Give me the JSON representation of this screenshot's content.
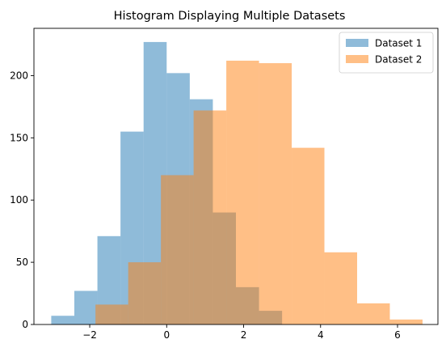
{
  "chart_data": {
    "type": "bar",
    "title": "Histogram Displaying Multiple Datasets",
    "xlabel": "",
    "ylabel": "",
    "xlim": [
      -3.45,
      7.05
    ],
    "ylim": [
      0,
      238
    ],
    "x_ticks": [
      -2,
      0,
      2,
      4,
      6
    ],
    "y_ticks": [
      0,
      50,
      100,
      150,
      200
    ],
    "grid": false,
    "legend_position": "top-right",
    "series": [
      {
        "name": "Dataset 1",
        "color": "#1f77b4",
        "opacity": 0.5,
        "bins": [
          {
            "x0": -3.0,
            "x1": -2.4,
            "count": 7
          },
          {
            "x0": -2.4,
            "x1": -1.8,
            "count": 27
          },
          {
            "x0": -1.8,
            "x1": -1.2,
            "count": 71
          },
          {
            "x0": -1.2,
            "x1": -0.6,
            "count": 155
          },
          {
            "x0": -0.6,
            "x1": 0.0,
            "count": 227
          },
          {
            "x0": 0.0,
            "x1": 0.6,
            "count": 202
          },
          {
            "x0": 0.6,
            "x1": 1.2,
            "count": 181
          },
          {
            "x0": 1.2,
            "x1": 1.8,
            "count": 90
          },
          {
            "x0": 1.8,
            "x1": 2.4,
            "count": 30
          },
          {
            "x0": 2.4,
            "x1": 3.0,
            "count": 11
          }
        ]
      },
      {
        "name": "Dataset 2",
        "color": "#ff7f0e",
        "opacity": 0.5,
        "bins": [
          {
            "x0": -1.85,
            "x1": -1.0,
            "count": 16
          },
          {
            "x0": -1.0,
            "x1": -0.15,
            "count": 50
          },
          {
            "x0": -0.15,
            "x1": 0.7,
            "count": 120
          },
          {
            "x0": 0.7,
            "x1": 1.55,
            "count": 172
          },
          {
            "x0": 1.55,
            "x1": 2.4,
            "count": 212
          },
          {
            "x0": 2.4,
            "x1": 3.25,
            "count": 210
          },
          {
            "x0": 3.25,
            "x1": 4.1,
            "count": 142
          },
          {
            "x0": 4.1,
            "x1": 4.95,
            "count": 58
          },
          {
            "x0": 4.95,
            "x1": 5.8,
            "count": 17
          },
          {
            "x0": 5.8,
            "x1": 6.65,
            "count": 4
          }
        ]
      }
    ]
  }
}
